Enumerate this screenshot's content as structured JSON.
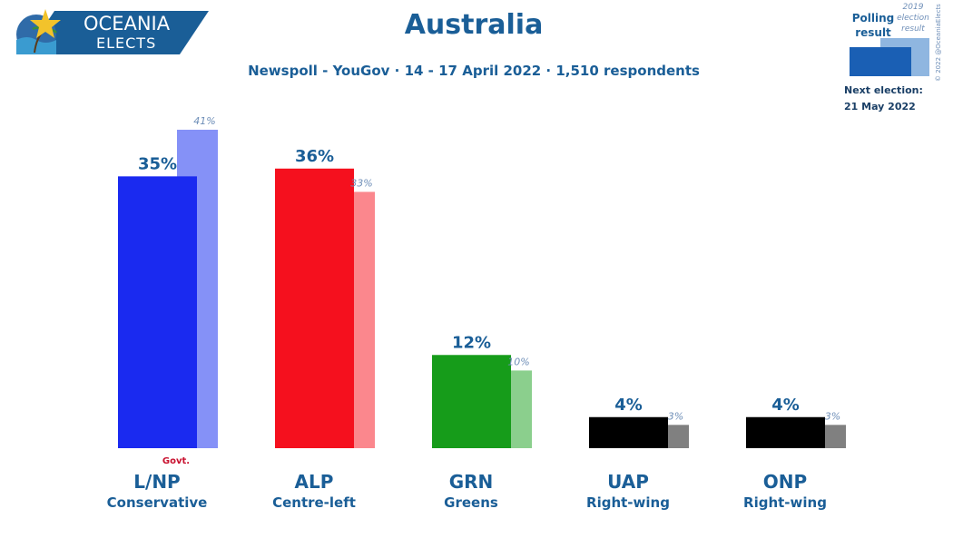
{
  "logo": {
    "line1": "OCEANIA",
    "line2": "ELECTS"
  },
  "chart_data": {
    "type": "bar",
    "title": "Australia",
    "subtitle": "Newspoll - YouGov · 14 - 17 April 2022 · 1,510 respondents",
    "categories": [
      "L/NP",
      "ALP",
      "GRN",
      "UAP",
      "ONP"
    ],
    "descriptions": [
      "Conservative",
      "Centre-left",
      "Greens",
      "Right-wing",
      "Right-wing"
    ],
    "series": [
      {
        "name": "Polling result",
        "values": [
          35,
          36,
          12,
          4,
          4
        ],
        "labels": [
          "35%",
          "36%",
          "12%",
          "4%",
          "4%"
        ]
      },
      {
        "name": "2019 election result",
        "values": [
          41,
          33,
          10,
          3,
          3
        ],
        "labels": [
          "41%",
          "33%",
          "10%",
          "3%",
          "3%"
        ]
      }
    ],
    "colors": [
      "#1a2af0",
      "#f5101e",
      "#169c1a",
      "#000000",
      "#000000"
    ],
    "prev_colors": [
      "#8591f7",
      "#fb878d",
      "#8bcf8d",
      "#808080",
      "#808080"
    ],
    "govt_label": "Govt.",
    "govt_index": 0,
    "ylim": [
      0,
      41
    ]
  },
  "legend": {
    "current_line1": "Polling",
    "current_line2": "result",
    "prev_line1": "2019",
    "prev_line2": "election",
    "prev_line3": "result",
    "current_color": "#1a5fb4",
    "prev_color": "#8fb6e0"
  },
  "next_election": {
    "label": "Next election:",
    "date": "21 May 2022"
  },
  "copyright": "© 2022 @OceaniaElects"
}
